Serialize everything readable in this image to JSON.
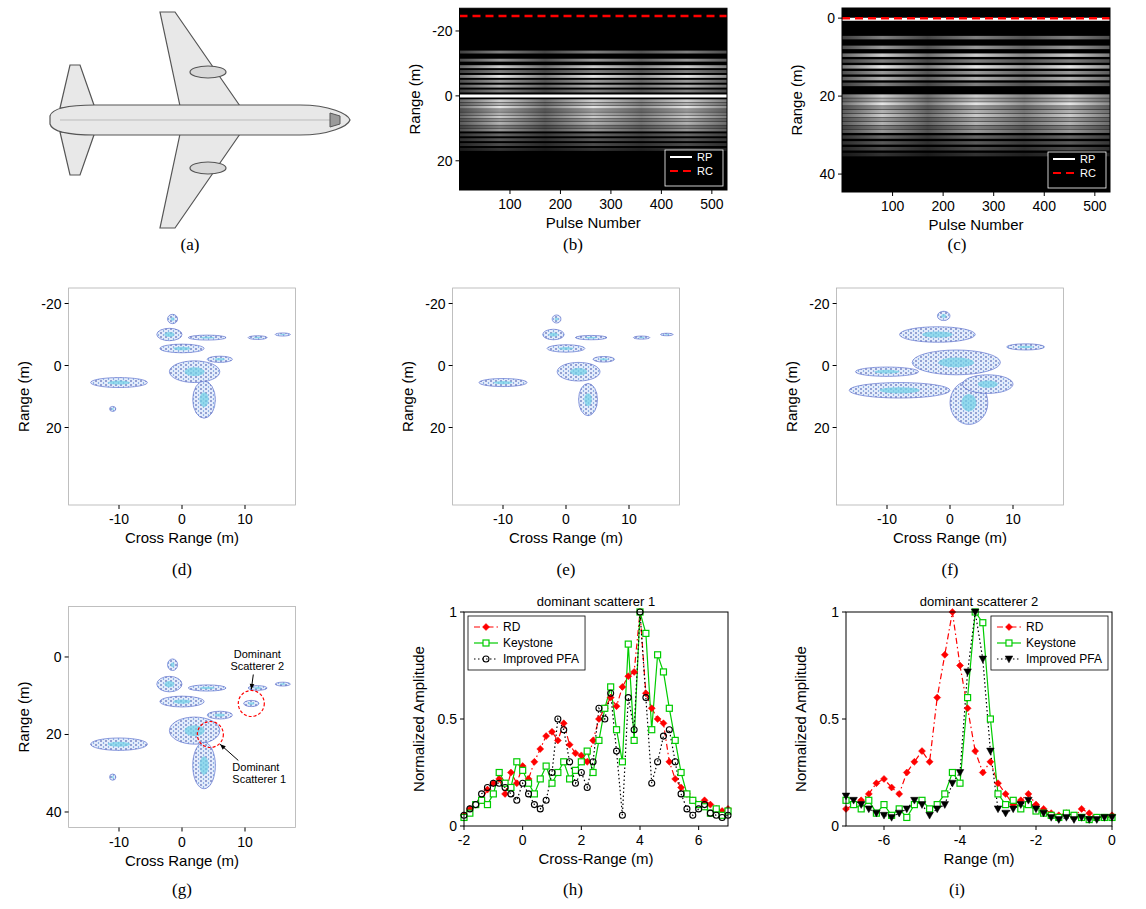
{
  "chart_data": [
    {
      "type": "illustration",
      "panel_label": "(a)"
    },
    {
      "type": "image",
      "panel_label": "(b)",
      "x_label": "Pulse Number",
      "y_label": "Range (m)",
      "xlim": [
        0,
        530
      ],
      "xticks": [
        100,
        200,
        300,
        400,
        500
      ],
      "ylim": [
        29,
        -27
      ],
      "yticks": [
        -20,
        0,
        20
      ],
      "bands": [
        {
          "y": -13.5,
          "intensity": 0.5
        },
        {
          "y": -11,
          "intensity": 0.6
        },
        {
          "y": -9,
          "intensity": 0.8
        },
        {
          "y": -7.5,
          "intensity": 0.5
        },
        {
          "y": -6,
          "intensity": 0.9
        },
        {
          "y": -4.5,
          "intensity": 0.6
        },
        {
          "y": -3,
          "intensity": 0.7
        },
        {
          "y": -1.5,
          "intensity": 0.5
        },
        {
          "y": 1.5,
          "intensity": 0.8
        },
        {
          "y": 2.5,
          "intensity": 0.7
        },
        {
          "y": 3.5,
          "intensity": 0.9
        },
        {
          "y": 4.5,
          "intensity": 0.6
        },
        {
          "y": 5.5,
          "intensity": 0.7
        },
        {
          "y": 6.5,
          "intensity": 0.8
        },
        {
          "y": 7.5,
          "intensity": 0.6
        },
        {
          "y": 8.5,
          "intensity": 0.7
        },
        {
          "y": 9.5,
          "intensity": 0.5
        },
        {
          "y": 10.5,
          "intensity": 0.6
        },
        {
          "y": 12,
          "intensity": 0.4
        },
        {
          "y": 13.5,
          "intensity": 0.35
        },
        {
          "y": 15,
          "intensity": 0.3
        },
        {
          "y": 16.5,
          "intensity": 0.2
        }
      ],
      "series": [
        {
          "name": "RP",
          "color": "#ffffff",
          "line_style": "solid",
          "value": 0
        },
        {
          "name": "RC",
          "color": "#ff0000",
          "line_style": "dashed",
          "value": -24.6
        }
      ],
      "legend": "lower right"
    },
    {
      "type": "image",
      "panel_label": "(c)",
      "x_label": "Pulse Number",
      "y_label": "Range (m)",
      "xlim": [
        0,
        530
      ],
      "xticks": [
        100,
        200,
        300,
        400,
        500
      ],
      "ylim": [
        44.6,
        -2.6
      ],
      "yticks": [
        0,
        20,
        40
      ],
      "bands": [
        {
          "y": 5,
          "intensity": 0.5
        },
        {
          "y": 7.5,
          "intensity": 0.6
        },
        {
          "y": 9.5,
          "intensity": 0.8
        },
        {
          "y": 11,
          "intensity": 0.5
        },
        {
          "y": 12.5,
          "intensity": 0.9
        },
        {
          "y": 14,
          "intensity": 0.6
        },
        {
          "y": 15.5,
          "intensity": 0.7
        },
        {
          "y": 17,
          "intensity": 0.5
        },
        {
          "y": 20,
          "intensity": 0.8
        },
        {
          "y": 21,
          "intensity": 0.7
        },
        {
          "y": 22,
          "intensity": 0.9
        },
        {
          "y": 23,
          "intensity": 0.6
        },
        {
          "y": 24,
          "intensity": 0.7
        },
        {
          "y": 25,
          "intensity": 0.8
        },
        {
          "y": 26,
          "intensity": 0.6
        },
        {
          "y": 27,
          "intensity": 0.7
        },
        {
          "y": 28,
          "intensity": 0.5
        },
        {
          "y": 29,
          "intensity": 0.6
        },
        {
          "y": 30.5,
          "intensity": 0.4
        },
        {
          "y": 32,
          "intensity": 0.35
        },
        {
          "y": 33.5,
          "intensity": 0.3
        },
        {
          "y": 35,
          "intensity": 0.2
        }
      ],
      "series": [
        {
          "name": "RP",
          "color": "#ffffff",
          "line_style": "solid",
          "value": 0.3
        },
        {
          "name": "RC",
          "color": "#ff0000",
          "line_style": "dashed",
          "value": 0
        }
      ],
      "legend": "lower right"
    },
    {
      "type": "isar",
      "panel_label": "(d)",
      "x_label": "Cross Range (m)",
      "y_label": "Range (m)",
      "xlim": [
        -18,
        18
      ],
      "xticks": [
        -10,
        0,
        10
      ],
      "ylim": [
        45,
        -25
      ],
      "yticks": [
        -20,
        0,
        20
      ],
      "blobs": [
        {
          "x": -10,
          "y": 5.5,
          "rx": 4.5,
          "ry": 1.6
        },
        {
          "x": 2,
          "y": 2,
          "rx": 4,
          "ry": 3.5
        },
        {
          "x": 3.5,
          "y": 11,
          "rx": 1.8,
          "ry": 6
        },
        {
          "x": 0,
          "y": -5.5,
          "rx": 3.5,
          "ry": 1.4
        },
        {
          "x": -2,
          "y": -10,
          "rx": 2,
          "ry": 2
        },
        {
          "x": -1.5,
          "y": -15,
          "rx": 0.8,
          "ry": 1.5
        },
        {
          "x": 4,
          "y": -9,
          "rx": 3,
          "ry": 0.8
        },
        {
          "x": 12,
          "y": -9,
          "rx": 1.5,
          "ry": 0.6
        },
        {
          "x": 16,
          "y": -10,
          "rx": 1.2,
          "ry": 0.5
        },
        {
          "x": -11,
          "y": 14,
          "rx": 0.5,
          "ry": 0.8
        },
        {
          "x": 6,
          "y": -2,
          "rx": 2,
          "ry": 1
        }
      ]
    },
    {
      "type": "isar",
      "panel_label": "(e)",
      "x_label": "Cross Range (m)",
      "y_label": "Range (m)",
      "xlim": [
        -18,
        18
      ],
      "xticks": [
        -10,
        0,
        10
      ],
      "ylim": [
        45,
        -25
      ],
      "yticks": [
        -20,
        0,
        20
      ],
      "blobs": [
        {
          "x": -10,
          "y": 5.5,
          "rx": 3.8,
          "ry": 1.3
        },
        {
          "x": 2,
          "y": 2,
          "rx": 3.4,
          "ry": 3
        },
        {
          "x": 3.5,
          "y": 11,
          "rx": 1.5,
          "ry": 5.2
        },
        {
          "x": 0,
          "y": -5.5,
          "rx": 3,
          "ry": 1.2
        },
        {
          "x": -2,
          "y": -10,
          "rx": 1.7,
          "ry": 1.7
        },
        {
          "x": -1.5,
          "y": -15,
          "rx": 0.7,
          "ry": 1.3
        },
        {
          "x": 4,
          "y": -9,
          "rx": 2.5,
          "ry": 0.7
        },
        {
          "x": 12,
          "y": -9,
          "rx": 1.3,
          "ry": 0.5
        },
        {
          "x": 16,
          "y": -10,
          "rx": 1,
          "ry": 0.4
        },
        {
          "x": 6,
          "y": -2,
          "rx": 1.7,
          "ry": 0.9
        }
      ]
    },
    {
      "type": "isar",
      "panel_label": "(f)",
      "x_label": "Cross Range (m)",
      "y_label": "Range (m)",
      "xlim": [
        -18,
        18
      ],
      "xticks": [
        -10,
        0,
        10
      ],
      "ylim": [
        45,
        -25
      ],
      "yticks": [
        -20,
        0,
        20
      ],
      "blobs": [
        {
          "x": -8,
          "y": 8,
          "rx": 8,
          "ry": 2.5
        },
        {
          "x": 1,
          "y": -1,
          "rx": 7,
          "ry": 4
        },
        {
          "x": 3,
          "y": 12,
          "rx": 3,
          "ry": 7
        },
        {
          "x": -2,
          "y": -10,
          "rx": 6,
          "ry": 2.5
        },
        {
          "x": 12,
          "y": -6,
          "rx": 3,
          "ry": 1
        },
        {
          "x": -10,
          "y": 2,
          "rx": 5,
          "ry": 1.5
        },
        {
          "x": 6,
          "y": 6,
          "rx": 4,
          "ry": 3
        },
        {
          "x": -1,
          "y": -16,
          "rx": 1,
          "ry": 1.5
        }
      ]
    },
    {
      "type": "isar",
      "panel_label": "(g)",
      "x_label": "Cross Range (m)",
      "y_label": "Range (m)",
      "xlim": [
        -18,
        18
      ],
      "xticks": [
        -10,
        0,
        10
      ],
      "ylim": [
        44,
        -13
      ],
      "yticks": [
        0,
        20,
        40
      ],
      "blobs": [
        {
          "x": -10,
          "y": 22.5,
          "rx": 4.5,
          "ry": 1.6
        },
        {
          "x": 2,
          "y": 19,
          "rx": 4,
          "ry": 3.5
        },
        {
          "x": 3.5,
          "y": 28,
          "rx": 1.8,
          "ry": 6
        },
        {
          "x": 0,
          "y": 11.5,
          "rx": 3.5,
          "ry": 1.4
        },
        {
          "x": -2,
          "y": 7,
          "rx": 2,
          "ry": 2
        },
        {
          "x": -1.5,
          "y": 2,
          "rx": 0.8,
          "ry": 1.5
        },
        {
          "x": 4,
          "y": 8,
          "rx": 3,
          "ry": 0.8
        },
        {
          "x": 12,
          "y": 8,
          "rx": 1.5,
          "ry": 0.6
        },
        {
          "x": 16,
          "y": 7,
          "rx": 1.2,
          "ry": 0.5
        },
        {
          "x": -11,
          "y": 31,
          "rx": 0.5,
          "ry": 0.8
        },
        {
          "x": 6,
          "y": 15,
          "rx": 2,
          "ry": 1
        },
        {
          "x": 11,
          "y": 12,
          "rx": 1.2,
          "ry": 0.8
        }
      ],
      "annotations": [
        {
          "text": "Dominant Scatterer 2",
          "x": 11,
          "y": 12
        },
        {
          "text": "Dominant Scatterer 1",
          "x": 4.5,
          "y": 20
        }
      ]
    },
    {
      "type": "line",
      "panel_label": "(h)",
      "title": "dominant scatterer 1",
      "x_label": "Cross-Range (m)",
      "y_label": "Normalized Amplitude",
      "xlim": [
        -2,
        7
      ],
      "xticks": [
        -2,
        0,
        2,
        4,
        6
      ],
      "ylim": [
        0,
        1
      ],
      "yticks": [
        0,
        0.5,
        1
      ],
      "legend": "upper left",
      "x": [
        -2,
        -1.8,
        -1.6,
        -1.4,
        -1.2,
        -1,
        -0.8,
        -0.6,
        -0.4,
        -0.2,
        0,
        0.2,
        0.4,
        0.6,
        0.8,
        1,
        1.2,
        1.4,
        1.6,
        1.8,
        2,
        2.2,
        2.4,
        2.6,
        2.8,
        3,
        3.2,
        3.4,
        3.6,
        3.8,
        4,
        4.2,
        4.4,
        4.6,
        4.8,
        5,
        5.2,
        5.4,
        5.6,
        5.8,
        6,
        6.2,
        6.4,
        6.6,
        6.8,
        7
      ],
      "series": [
        {
          "name": "RD",
          "color": "#ff0000",
          "marker": "diamond",
          "line_style": "dashdot",
          "values": [
            0.05,
            0.08,
            0.1,
            0.12,
            0.17,
            0.2,
            0.22,
            0.15,
            0.25,
            0.2,
            0.28,
            0.22,
            0.3,
            0.36,
            0.42,
            0.44,
            0.4,
            0.48,
            0.38,
            0.34,
            0.33,
            0.3,
            0.4,
            0.5,
            0.55,
            0.6,
            0.56,
            0.65,
            0.7,
            0.72,
            1,
            0.62,
            0.55,
            0.5,
            0.48,
            0.3,
            0.22,
            0.18,
            0.15,
            0.12,
            0.1,
            0.12,
            0.1,
            0.08,
            0.07,
            0.08
          ]
        },
        {
          "name": "Keystone",
          "color": "#00cc00",
          "marker": "square",
          "line_style": "solid",
          "values": [
            0.04,
            0.06,
            0.1,
            0.12,
            0.1,
            0.15,
            0.25,
            0.2,
            0.18,
            0.3,
            0.26,
            0.2,
            0.15,
            0.22,
            0.28,
            0.2,
            0.25,
            0.3,
            0.22,
            0.26,
            0.3,
            0.35,
            0.25,
            0.4,
            0.55,
            0.65,
            0.45,
            0.3,
            0.85,
            0.4,
            1,
            0.9,
            0.45,
            0.8,
            0.72,
            0.55,
            0.4,
            0.25,
            0.15,
            0.12,
            0.1,
            0.09,
            0.06,
            0.08,
            0.05,
            0.07
          ]
        },
        {
          "name": "Improved PFA",
          "color": "#000000",
          "marker": "circle",
          "line_style": "dotted",
          "values": [
            0.05,
            0.08,
            0.1,
            0.15,
            0.18,
            0.2,
            0.2,
            0.18,
            0.15,
            0.12,
            0.2,
            0.15,
            0.1,
            0.08,
            0.12,
            0.25,
            0.5,
            0.45,
            0.3,
            0.2,
            0.25,
            0.18,
            0.3,
            0.55,
            0.5,
            0.62,
            0.35,
            0.05,
            0.6,
            0.45,
            1,
            0.6,
            0.2,
            0.3,
            0.42,
            0.45,
            0.3,
            0.15,
            0.08,
            0.05,
            0.08,
            0.1,
            0.06,
            0.05,
            0.04,
            0.05
          ]
        }
      ]
    },
    {
      "type": "line",
      "panel_label": "(i)",
      "title": "dominant scatterer 2",
      "x_label": "Range (m)",
      "y_label": "Normalized Amplitude",
      "xlim": [
        -7,
        0
      ],
      "xticks": [
        -6,
        -4,
        -2,
        0
      ],
      "ylim": [
        0,
        1
      ],
      "yticks": [
        0,
        0.5,
        1
      ],
      "legend": "upper right",
      "x": [
        -7,
        -6.8,
        -6.6,
        -6.4,
        -6.2,
        -6,
        -5.8,
        -5.6,
        -5.4,
        -5.2,
        -5,
        -4.8,
        -4.6,
        -4.4,
        -4.2,
        -4,
        -3.8,
        -3.6,
        -3.4,
        -3.2,
        -3,
        -2.8,
        -2.6,
        -2.4,
        -2.2,
        -2,
        -1.8,
        -1.6,
        -1.4,
        -1.2,
        -1,
        -0.8,
        -0.6,
        -0.4,
        -0.2,
        0
      ],
      "series": [
        {
          "name": "RD",
          "color": "#ff0000",
          "marker": "diamond",
          "line_style": "dashdot",
          "values": [
            0.08,
            0.1,
            0.12,
            0.15,
            0.2,
            0.22,
            0.18,
            0.15,
            0.25,
            0.3,
            0.35,
            0.3,
            0.6,
            0.8,
            1,
            0.75,
            0.55,
            0.35,
            0.25,
            0.3,
            0.2,
            0.15,
            0.1,
            0.12,
            0.15,
            0.1,
            0.08,
            0.06,
            0.05,
            0.06,
            0.04,
            0.08,
            0.06,
            0.04,
            0.04,
            0.05
          ]
        },
        {
          "name": "Keystone",
          "color": "#00cc00",
          "marker": "square",
          "line_style": "solid",
          "values": [
            0.12,
            0.1,
            0.08,
            0.12,
            0.06,
            0.1,
            0.05,
            0.08,
            0.04,
            0.1,
            0.12,
            0.08,
            0.1,
            0.15,
            0.25,
            0.2,
            0.6,
            1,
            0.95,
            0.5,
            0.15,
            0.1,
            0.12,
            0.08,
            0.1,
            0.07,
            0.06,
            0.05,
            0.04,
            0.06,
            0.05,
            0.04,
            0.03,
            0.04,
            0.04,
            0.04
          ]
        },
        {
          "name": "Improved PFA",
          "color": "#000000",
          "marker": "triangle-down",
          "line_style": "dotted",
          "values": [
            0.14,
            0.12,
            0.1,
            0.08,
            0.06,
            0.05,
            0.04,
            0.06,
            0.08,
            0.12,
            0.1,
            0.05,
            0.08,
            0.1,
            0.2,
            0.25,
            0.72,
            1,
            0.78,
            0.35,
            0.08,
            0.06,
            0.08,
            0.1,
            0.12,
            0.08,
            0.06,
            0.04,
            0.03,
            0.04,
            0.03,
            0.04,
            0.03,
            0.03,
            0.04,
            0.04
          ]
        }
      ]
    }
  ]
}
